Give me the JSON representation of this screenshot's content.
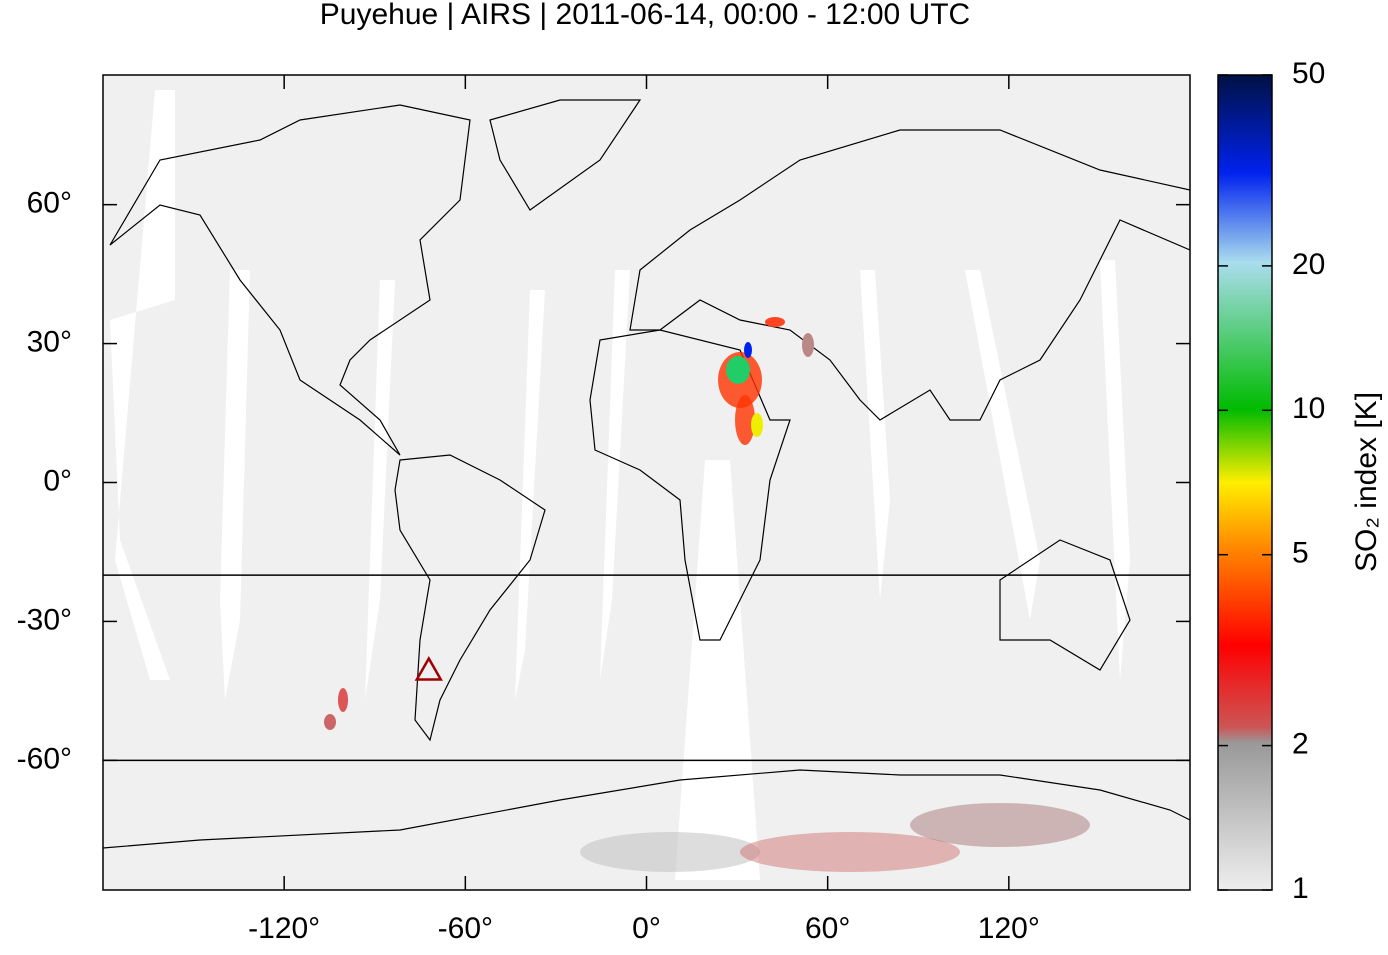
{
  "map": {
    "title": "Puyehue | AIRS | 2011-06-14, 00:00 - 12:00 UTC",
    "xlim": [
      -180,
      180
    ],
    "ylim": [
      -88,
      88
    ],
    "xticks": [
      {
        "value": -120,
        "label": "-120°"
      },
      {
        "value": -60,
        "label": "-60°"
      },
      {
        "value": 0,
        "label": "0°"
      },
      {
        "value": 60,
        "label": "60°"
      },
      {
        "value": 120,
        "label": "120°"
      }
    ],
    "yticks": [
      {
        "value": 60,
        "label": "60°"
      },
      {
        "value": 30,
        "label": "30°"
      },
      {
        "value": 0,
        "label": "0°"
      },
      {
        "value": -30,
        "label": "-30°"
      },
      {
        "value": -60,
        "label": "-60°"
      }
    ],
    "reference_lats": [
      -20,
      -60
    ],
    "volcano": {
      "lon": -72.1,
      "lat": -40.6,
      "color": "#a00000"
    },
    "colorbar": {
      "label": "SO₂ index [K]",
      "log_scale": true,
      "lim": [
        1,
        50
      ],
      "ticks": [
        1,
        2,
        5,
        10,
        20,
        50
      ]
    }
  }
}
